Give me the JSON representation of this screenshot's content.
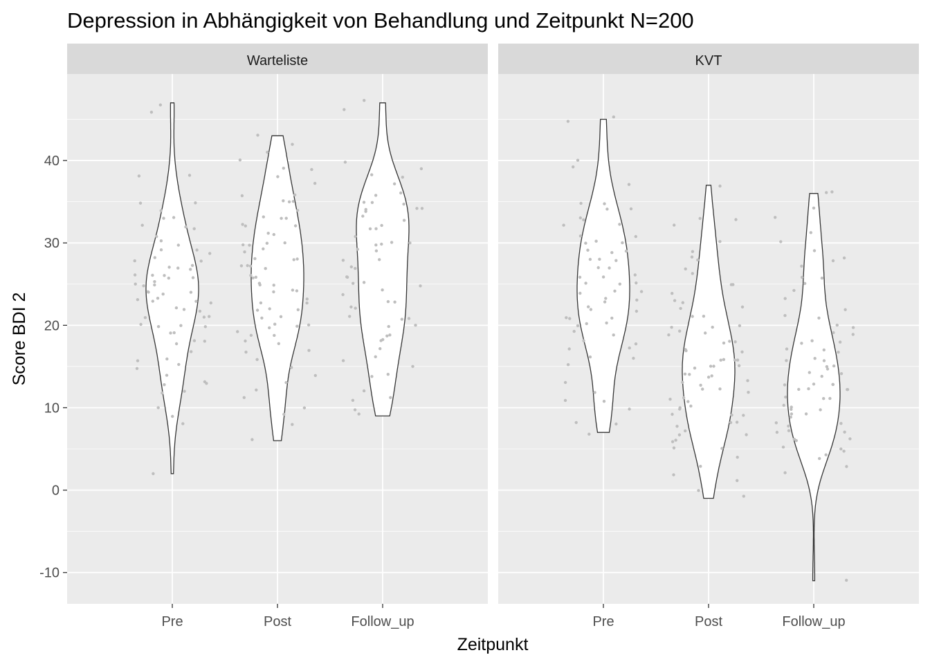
{
  "chart_data": {
    "type": "violin",
    "title": "Depression in Abhängigkeit von Behandlung und Zeitpunkt N=200",
    "xlabel": "Zeitpunkt",
    "ylabel": "Score BDI 2",
    "categories": [
      "Pre",
      "Post",
      "Follow_up"
    ],
    "y_ticks": [
      -10,
      0,
      10,
      20,
      30,
      40
    ],
    "ylim": [
      -13.8,
      50.5
    ],
    "grid": true,
    "colors": {
      "panel_bg": "#EBEBEB",
      "strip_bg": "#D9D9D9",
      "grid": "#FFFFFF",
      "violin_fill": "#FFFFFF",
      "violin_outline": "#333333",
      "points": "#BEBEBE",
      "text": "#4D4D4D"
    },
    "panels": [
      {
        "name": "Warteliste",
        "violins": [
          {
            "category": "Pre",
            "min": 2,
            "max": 47,
            "points": [
              46,
              47,
              38,
              38,
              35,
              35,
              34,
              33,
              33,
              32,
              32,
              32,
              31,
              30,
              30,
              29,
              29,
              29,
              28,
              28,
              28,
              27,
              27,
              27,
              27,
              26,
              26,
              26,
              26,
              26,
              25,
              25,
              25,
              25,
              24,
              24,
              24,
              24,
              23,
              23,
              23,
              23,
              23,
              22,
              22,
              22,
              21,
              21,
              21,
              20,
              20,
              20,
              20,
              19,
              19,
              18,
              18,
              18,
              17,
              16,
              16,
              15,
              15,
              14,
              13,
              13,
              13,
              12,
              12,
              10,
              9,
              8,
              2
            ]
          },
          {
            "category": "Post",
            "min": 6,
            "max": 43,
            "points": [
              43,
              42,
              41,
              40,
              39,
              39,
              38,
              37,
              36,
              36,
              35,
              35,
              35,
              34,
              33,
              33,
              33,
              32,
              32,
              32,
              31,
              31,
              30,
              30,
              30,
              30,
              29,
              29,
              28,
              28,
              28,
              27,
              27,
              27,
              27,
              26,
              26,
              26,
              25,
              25,
              25,
              24,
              24,
              24,
              23,
              23,
              23,
              22,
              22,
              22,
              21,
              21,
              20,
              20,
              20,
              20,
              19,
              19,
              19,
              18,
              18,
              17,
              17,
              16,
              15,
              14,
              13,
              12,
              11,
              10,
              9,
              8,
              6
            ]
          },
          {
            "category": "Follow_up",
            "min": 9,
            "max": 47,
            "points": [
              47,
              46,
              40,
              39,
              38,
              38,
              37,
              36,
              36,
              35,
              35,
              35,
              34,
              34,
              34,
              34,
              33,
              33,
              32,
              32,
              32,
              31,
              30,
              30,
              30,
              30,
              29,
              29,
              28,
              28,
              27,
              27,
              26,
              26,
              25,
              25,
              25,
              24,
              24,
              23,
              23,
              22,
              22,
              21,
              21,
              21,
              20,
              20,
              19,
              19,
              18,
              18,
              17,
              16,
              16,
              15,
              14,
              14,
              12,
              11,
              11,
              10,
              9
            ]
          }
        ]
      },
      {
        "name": "KVT",
        "violins": [
          {
            "category": "Pre",
            "min": 7,
            "max": 45,
            "points": [
              45,
              45,
              40,
              39,
              37,
              35,
              35,
              34,
              34,
              33,
              33,
              32,
              32,
              31,
              31,
              30,
              30,
              30,
              29,
              29,
              29,
              28,
              28,
              28,
              27,
              27,
              26,
              26,
              26,
              25,
              25,
              25,
              24,
              24,
              24,
              23,
              23,
              23,
              22,
              22,
              22,
              21,
              21,
              21,
              20,
              20,
              20,
              19,
              19,
              18,
              18,
              17,
              17,
              16,
              16,
              15,
              13,
              12,
              11,
              11,
              10,
              8,
              8,
              7
            ]
          },
          {
            "category": "Post",
            "min": -1,
            "max": 37,
            "points": [
              37,
              33,
              33,
              32,
              30,
              29,
              28,
              28,
              27,
              26,
              25,
              25,
              24,
              23,
              23,
              22,
              22,
              21,
              21,
              20,
              20,
              20,
              19,
              19,
              19,
              18,
              18,
              18,
              17,
              17,
              17,
              16,
              16,
              16,
              16,
              15,
              15,
              15,
              15,
              14,
              14,
              14,
              14,
              13,
              13,
              13,
              12,
              12,
              12,
              11,
              11,
              11,
              10,
              10,
              10,
              9,
              9,
              9,
              8,
              8,
              8,
              7,
              7,
              7,
              6,
              6,
              5,
              5,
              4,
              3,
              2,
              1,
              0,
              -1
            ]
          },
          {
            "category": "Follow_up",
            "min": -11,
            "max": 36,
            "points": [
              36,
              36,
              34,
              33,
              31,
              30,
              29,
              28,
              28,
              27,
              26,
              26,
              25,
              24,
              23,
              22,
              21,
              21,
              20,
              20,
              19,
              19,
              18,
              18,
              18,
              17,
              17,
              17,
              16,
              16,
              16,
              15,
              15,
              15,
              14,
              14,
              14,
              13,
              13,
              13,
              13,
              12,
              12,
              12,
              12,
              11,
              11,
              11,
              10,
              10,
              10,
              10,
              9,
              9,
              9,
              8,
              8,
              8,
              7,
              7,
              7,
              6,
              6,
              6,
              5,
              5,
              5,
              4,
              4,
              3,
              2,
              -11
            ]
          }
        ]
      }
    ]
  }
}
